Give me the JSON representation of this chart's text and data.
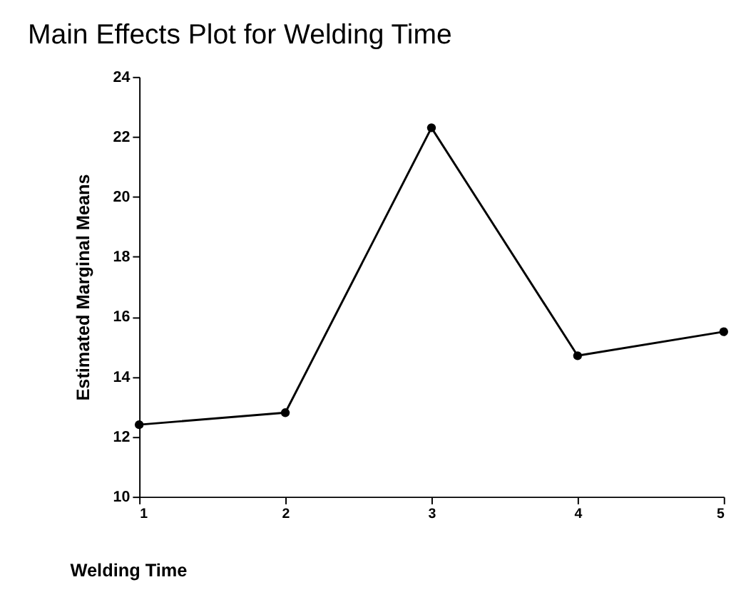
{
  "chart_data": {
    "type": "line",
    "title": "Main Effects Plot for Welding Time",
    "xlabel": "Welding Time",
    "ylabel": "Estimated Marginal Means",
    "x": [
      1,
      2,
      3,
      4,
      5
    ],
    "series": [
      {
        "color": "#000000",
        "values": [
          12.4,
          12.8,
          22.3,
          14.7,
          15.5
        ]
      }
    ],
    "xlim": [
      1,
      5
    ],
    "xticks": [
      1,
      2,
      3,
      4,
      5
    ],
    "ylim": [
      10,
      24
    ],
    "yticks": [
      10,
      12,
      14,
      16,
      18,
      20,
      22,
      24
    ],
    "grid": false,
    "legend": false,
    "marker": "circle",
    "line_style": "solid"
  }
}
